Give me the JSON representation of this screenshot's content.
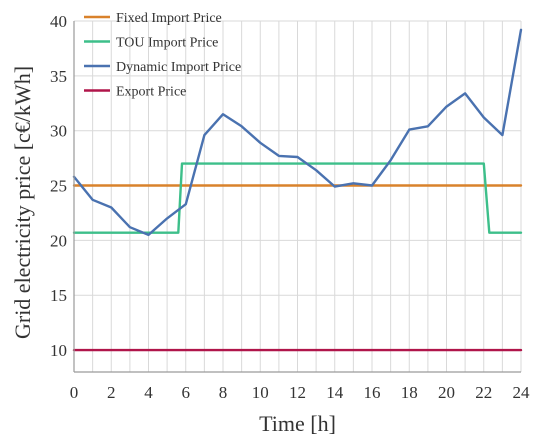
{
  "chart_data": {
    "type": "line",
    "xlabel": "Time [h]",
    "ylabel": "Grid electricity price [c€/kWh]",
    "xlim": [
      0,
      24
    ],
    "ylim": [
      8,
      40
    ],
    "xticks": [
      0,
      2,
      4,
      6,
      8,
      10,
      12,
      14,
      16,
      18,
      20,
      22,
      24
    ],
    "yticks": [
      10,
      15,
      20,
      25,
      30,
      35,
      40
    ],
    "grid": true,
    "legend_position": "top-left",
    "series": [
      {
        "name": "Fixed Import Price",
        "color": "#d9822b",
        "x": [
          0,
          24
        ],
        "y": [
          25,
          25
        ]
      },
      {
        "name": "TOU Import Price",
        "color": "#3dbf8a",
        "x": [
          0,
          5.6,
          5.8,
          22,
          22.3,
          24
        ],
        "y": [
          20.7,
          20.7,
          27,
          27,
          20.7,
          20.7
        ]
      },
      {
        "name": "Dynamic Import Price",
        "color": "#4a72b0",
        "x": [
          0,
          1,
          2,
          3,
          4,
          5,
          6,
          7,
          8,
          9,
          10,
          11,
          12,
          13,
          14,
          15,
          16,
          17,
          18,
          19,
          20,
          21,
          22,
          23,
          24
        ],
        "y": [
          25.8,
          23.7,
          23.0,
          21.2,
          20.5,
          22.0,
          23.3,
          29.6,
          31.5,
          30.4,
          28.9,
          27.7,
          27.6,
          26.4,
          24.9,
          25.2,
          25.0,
          27.3,
          30.1,
          30.4,
          32.2,
          33.4,
          31.2,
          29.6,
          39.2
        ]
      },
      {
        "name": "Export Price",
        "color": "#b0154a",
        "x": [
          0,
          24
        ],
        "y": [
          10,
          10
        ]
      }
    ]
  }
}
